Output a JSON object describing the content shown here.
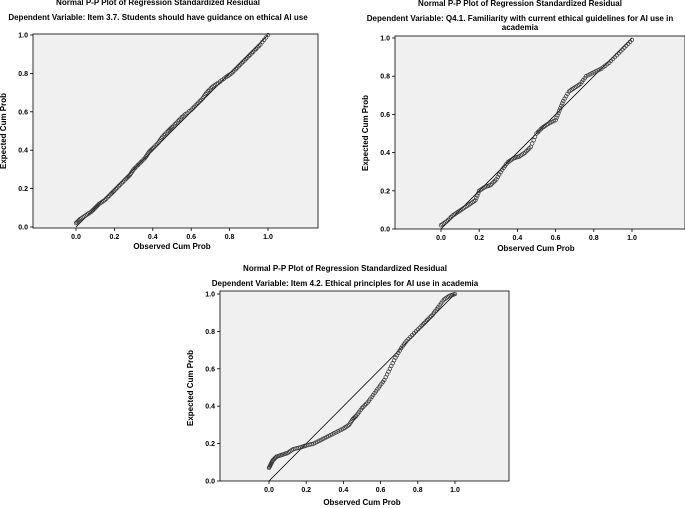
{
  "chart_data": [
    {
      "type": "scatter",
      "title": "Normal P-P Plot of Regression Standardized Residual",
      "subtitle": "Dependent Variable: Item 3.7. Students should have guidance on ethical AI use",
      "subtitle_line2": "",
      "xlabel": "Observed Cum Prob",
      "ylabel": "Expected Cum Prob",
      "xlim": [
        0,
        1
      ],
      "ylim": [
        0,
        1
      ],
      "xticks": [
        "0.0",
        "0.2",
        "0.4",
        "0.6",
        "0.8",
        "1.0"
      ],
      "yticks": [
        "0.0",
        "0.2",
        "0.4",
        "0.6",
        "0.8",
        "1.0"
      ],
      "reference_line": [
        [
          0,
          0
        ],
        [
          1,
          1
        ]
      ],
      "points": [
        [
          0.0,
          0.02
        ],
        [
          0.02,
          0.04
        ],
        [
          0.05,
          0.06
        ],
        [
          0.08,
          0.08
        ],
        [
          0.1,
          0.1
        ],
        [
          0.12,
          0.12
        ],
        [
          0.15,
          0.14
        ],
        [
          0.18,
          0.17
        ],
        [
          0.2,
          0.19
        ],
        [
          0.23,
          0.22
        ],
        [
          0.26,
          0.25
        ],
        [
          0.28,
          0.27
        ],
        [
          0.3,
          0.3
        ],
        [
          0.33,
          0.33
        ],
        [
          0.36,
          0.36
        ],
        [
          0.38,
          0.39
        ],
        [
          0.4,
          0.41
        ],
        [
          0.43,
          0.44
        ],
        [
          0.45,
          0.47
        ],
        [
          0.48,
          0.5
        ],
        [
          0.5,
          0.52
        ],
        [
          0.53,
          0.55
        ],
        [
          0.56,
          0.58
        ],
        [
          0.6,
          0.61
        ],
        [
          0.63,
          0.64
        ],
        [
          0.66,
          0.67
        ],
        [
          0.68,
          0.7
        ],
        [
          0.71,
          0.73
        ],
        [
          0.74,
          0.75
        ],
        [
          0.78,
          0.78
        ],
        [
          0.81,
          0.8
        ],
        [
          0.84,
          0.83
        ],
        [
          0.87,
          0.86
        ],
        [
          0.9,
          0.89
        ],
        [
          0.93,
          0.92
        ],
        [
          0.96,
          0.95
        ],
        [
          1.0,
          1.0
        ]
      ]
    },
    {
      "type": "scatter",
      "title": "Normal P-P Plot of Regression Standardized Residual",
      "subtitle": "Dependent Variable: Q4.1. Familiarity with current ethical guidelines for AI use in",
      "subtitle_line2": "academia",
      "xlabel": "Observed Cum Prob",
      "ylabel": "Expected Cum Prob",
      "xlim": [
        0,
        1
      ],
      "ylim": [
        0,
        1
      ],
      "xticks": [
        "0.0",
        "0.2",
        "0.4",
        "0.6",
        "0.8",
        "1.0"
      ],
      "yticks": [
        "0.0",
        "0.2",
        "0.4",
        "0.6",
        "0.8",
        "1.0"
      ],
      "reference_line": [
        [
          0,
          0
        ],
        [
          1,
          1
        ]
      ],
      "points": [
        [
          0.0,
          0.02
        ],
        [
          0.03,
          0.04
        ],
        [
          0.06,
          0.07
        ],
        [
          0.09,
          0.09
        ],
        [
          0.12,
          0.11
        ],
        [
          0.15,
          0.13
        ],
        [
          0.18,
          0.15
        ],
        [
          0.2,
          0.2
        ],
        [
          0.23,
          0.22
        ],
        [
          0.26,
          0.23
        ],
        [
          0.29,
          0.26
        ],
        [
          0.32,
          0.31
        ],
        [
          0.35,
          0.35
        ],
        [
          0.38,
          0.37
        ],
        [
          0.41,
          0.38
        ],
        [
          0.44,
          0.4
        ],
        [
          0.47,
          0.43
        ],
        [
          0.5,
          0.5
        ],
        [
          0.53,
          0.53
        ],
        [
          0.56,
          0.55
        ],
        [
          0.6,
          0.57
        ],
        [
          0.62,
          0.62
        ],
        [
          0.64,
          0.67
        ],
        [
          0.67,
          0.72
        ],
        [
          0.7,
          0.74
        ],
        [
          0.73,
          0.76
        ],
        [
          0.76,
          0.8
        ],
        [
          0.8,
          0.82
        ],
        [
          0.84,
          0.84
        ],
        [
          0.88,
          0.87
        ],
        [
          0.92,
          0.91
        ],
        [
          0.96,
          0.95
        ],
        [
          1.0,
          0.99
        ]
      ]
    },
    {
      "type": "scatter",
      "title": "Normal P-P Plot of Regression Standardized Residual",
      "subtitle": "Dependent Variable: Item 4.2. Ethical principles for AI use in academia",
      "subtitle_line2": "",
      "xlabel": "Observed Cum Prob",
      "ylabel": "Expected Cum Prob",
      "xlim": [
        0,
        1
      ],
      "ylim": [
        0,
        1
      ],
      "xticks": [
        "0.0",
        "0.2",
        "0.4",
        "0.6",
        "0.8",
        "1.0"
      ],
      "yticks": [
        "0.0",
        "0.2",
        "0.4",
        "0.6",
        "0.8",
        "1.0"
      ],
      "reference_line": [
        [
          0,
          0
        ],
        [
          1,
          1
        ]
      ],
      "points": [
        [
          0.0,
          0.07
        ],
        [
          0.01,
          0.09
        ],
        [
          0.02,
          0.11
        ],
        [
          0.04,
          0.13
        ],
        [
          0.07,
          0.14
        ],
        [
          0.1,
          0.15
        ],
        [
          0.13,
          0.17
        ],
        [
          0.17,
          0.18
        ],
        [
          0.2,
          0.19
        ],
        [
          0.24,
          0.2
        ],
        [
          0.28,
          0.22
        ],
        [
          0.32,
          0.24
        ],
        [
          0.36,
          0.26
        ],
        [
          0.4,
          0.28
        ],
        [
          0.43,
          0.3
        ],
        [
          0.45,
          0.33
        ],
        [
          0.47,
          0.35
        ],
        [
          0.5,
          0.39
        ],
        [
          0.53,
          0.42
        ],
        [
          0.56,
          0.46
        ],
        [
          0.59,
          0.5
        ],
        [
          0.62,
          0.54
        ],
        [
          0.65,
          0.6
        ],
        [
          0.68,
          0.66
        ],
        [
          0.71,
          0.71
        ],
        [
          0.74,
          0.75
        ],
        [
          0.78,
          0.79
        ],
        [
          0.82,
          0.83
        ],
        [
          0.85,
          0.86
        ],
        [
          0.88,
          0.89
        ],
        [
          0.91,
          0.93
        ],
        [
          0.94,
          0.97
        ],
        [
          0.97,
          0.99
        ],
        [
          1.0,
          1.0
        ]
      ]
    }
  ]
}
